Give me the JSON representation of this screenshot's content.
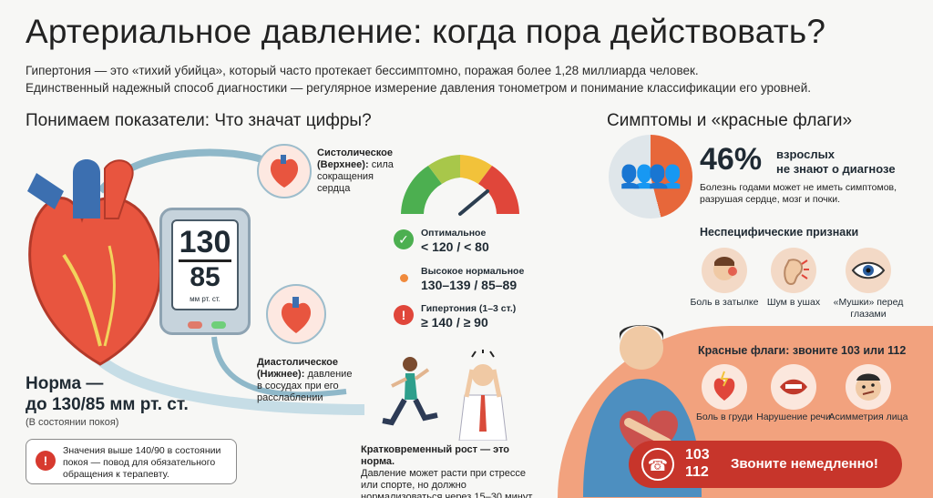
{
  "header": {
    "title": "Артериальное давление: когда пора действовать?",
    "intro_line1": "Гипертония — это «тихий убийца», который часто протекает бессимптомно, поражая более 1,28 миллиарда человек.",
    "intro_line2": "Единственный надежный способ диагностики — регулярное измерение давления тонометром и понимание классификации его уровней."
  },
  "left": {
    "heading": "Понимаем показатели: Что значат цифры?",
    "monitor": {
      "systolic": "130",
      "diastolic": "85",
      "unit": "мм рт. ст."
    },
    "systolic_label": {
      "title": "Систолическое (Верхнее):",
      "desc": "сила сокращения сердца"
    },
    "diastolic_label": {
      "title": "Диастолическое (Нижнее):",
      "desc": "давление в сосудах при его расслаблении"
    },
    "norm": {
      "title_line1": "Норма —",
      "title_line2": "до 130/85 мм рт. ст.",
      "sub": "(В состоянии покоя)"
    },
    "warning": "Значения выше 140/90 в состоянии покоя — повод для обязательного обращения к терапевту.",
    "gauge_items": [
      {
        "title": "Оптимальное",
        "value": "< 120 / < 80",
        "color": "#4caf50",
        "icon": "check-icon"
      },
      {
        "title": "Высокое нормальное",
        "value": "130–139 / 85–89",
        "color": "#f08a3c",
        "icon": "dot-icon"
      },
      {
        "title": "Гипертония (1–3 ст.)",
        "value": "≥ 140 / ≥ 90",
        "color": "#e0463a",
        "icon": "exclamation-icon"
      }
    ],
    "short_rise": {
      "title": "Кратковременный рост — это норма.",
      "desc": "Давление может расти при стрессе или спорте, но должно нормализоваться через 15–30 минут."
    }
  },
  "right": {
    "heading": "Симптомы и «красные флаги»",
    "stat": {
      "value": "46%",
      "label_line1": "взрослых",
      "label_line2": "не знают о диагнозе",
      "desc": "Болезнь годами может не иметь симптомов, разрушая сердце, мозг и почки."
    },
    "nonspecific_heading": "Неспецифические признаки",
    "nonspecific": [
      {
        "label": "Боль в затылке",
        "icon": "head-pain-icon"
      },
      {
        "label": "Шум в ушах",
        "icon": "ear-icon"
      },
      {
        "label": "«Мушки» перед глазами",
        "icon": "eye-icon"
      }
    ],
    "red_flags_heading": "Красные флаги: звоните 103 или 112",
    "red_flags": [
      {
        "label": "Боль в груди",
        "icon": "heart-pain-icon"
      },
      {
        "label": "Нарушение речи",
        "icon": "mouth-icon"
      },
      {
        "label": "Асимметрия лица",
        "icon": "face-icon"
      }
    ],
    "call": {
      "num1": "103",
      "num2": "112",
      "label": "Звоните немедленно!"
    }
  },
  "colors": {
    "accent_red": "#c7352b",
    "accent_orange": "#f08a3c",
    "green": "#4caf50",
    "blue_gray": "#8ea3b2"
  }
}
